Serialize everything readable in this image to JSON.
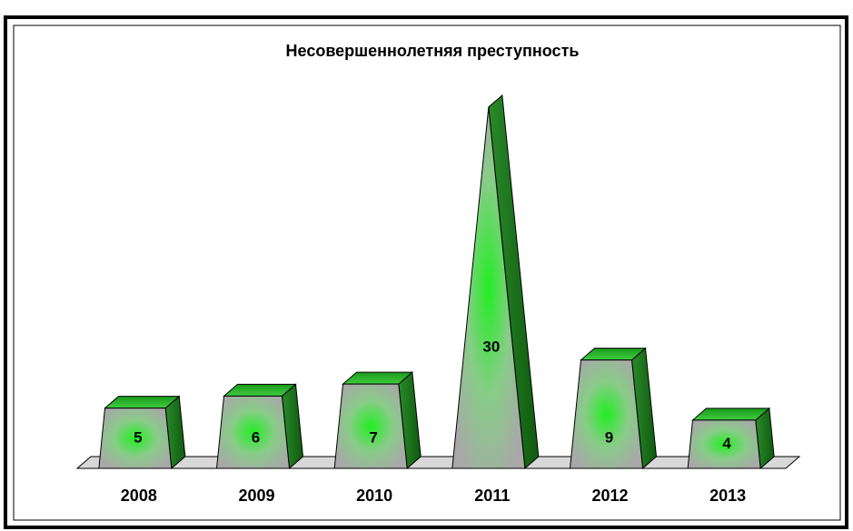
{
  "chart_data": {
    "type": "bar",
    "title": "Несовершеннолетняя преступность",
    "categories": [
      "2008",
      "2009",
      "2010",
      "2011",
      "2012",
      "2013"
    ],
    "values": [
      5,
      6,
      7,
      30,
      9,
      4
    ],
    "color": "#22dd22"
  }
}
